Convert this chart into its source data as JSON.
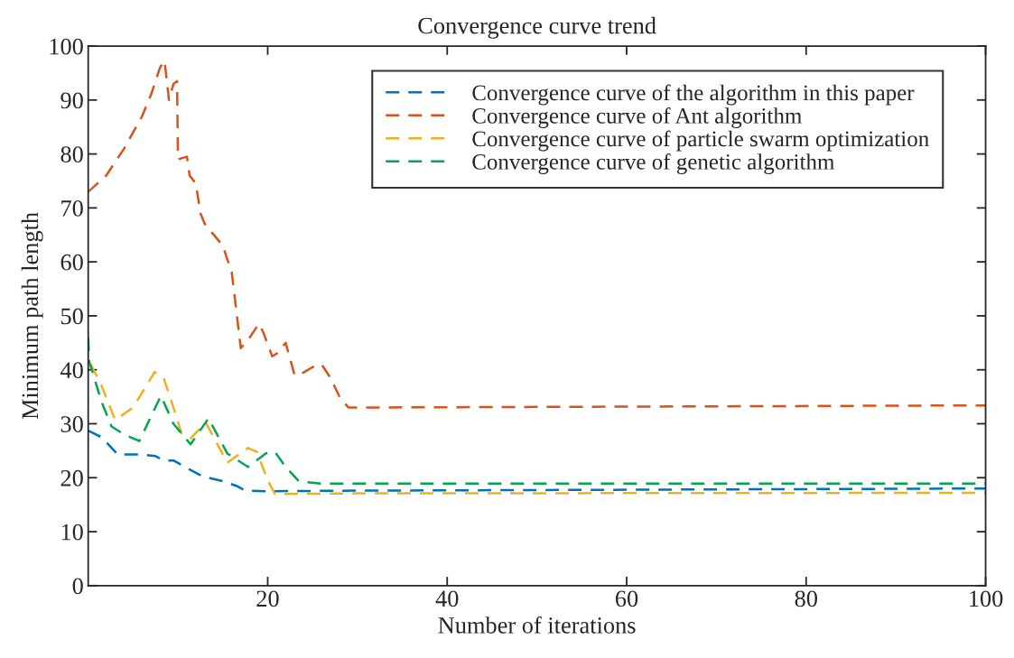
{
  "chart_data": {
    "type": "line",
    "title": "Convergence curve trend",
    "xlabel": "Number of iterations",
    "ylabel": "Minimum path length",
    "xlim": [
      0,
      100
    ],
    "ylim": [
      0,
      100
    ],
    "xticks": [
      20,
      40,
      60,
      80,
      100
    ],
    "yticks": [
      0,
      10,
      20,
      30,
      40,
      50,
      60,
      70,
      80,
      90,
      100
    ],
    "grid": false,
    "legend": "top right",
    "line_style": "dashed",
    "marker": "none",
    "series": [
      {
        "name": "Convergence curve of the algorithm in this paper",
        "color": "#0072bd",
        "x": [
          0,
          1.5,
          3.3,
          6,
          7.5,
          8.4,
          9.5,
          11,
          12.7,
          15.1,
          16.5,
          17.5,
          20,
          30,
          100
        ],
        "values": [
          28.7,
          27.5,
          24.3,
          24.3,
          24,
          23.2,
          23.2,
          21.8,
          20.3,
          19.3,
          18.5,
          17.6,
          17.5,
          17.6,
          18
        ]
      },
      {
        "name": "Convergence curve of Ant algorithm",
        "color": "#d95319",
        "x": [
          0,
          2,
          4,
          6,
          7,
          8,
          8.5,
          9,
          9.5,
          9.9,
          10,
          11,
          11.3,
          12,
          12.5,
          13,
          15,
          16,
          16.5,
          17,
          18,
          19,
          19.5,
          20.5,
          21,
          22,
          23,
          24,
          25,
          26,
          27,
          28,
          29,
          30,
          100
        ],
        "values": [
          73,
          76,
          81,
          87,
          91,
          96,
          97.3,
          90,
          93,
          93.5,
          79,
          79.5,
          76,
          74.5,
          69,
          67,
          63,
          58,
          51,
          44,
          46,
          48.5,
          47,
          42.5,
          43,
          45,
          39,
          39.5,
          40.5,
          41,
          38.5,
          35,
          33,
          33,
          33.4
        ]
      },
      {
        "name": "Convergence curve of particle swarm optimization",
        "color": "#edb120",
        "x": [
          0.3,
          1.5,
          3,
          5,
          7.4,
          8.4,
          9.5,
          10.4,
          11.4,
          13.1,
          15.5,
          17.8,
          18.8,
          20,
          20.8,
          22,
          30,
          100
        ],
        "values": [
          41,
          37,
          30.7,
          33,
          39.6,
          38.5,
          33,
          28.2,
          27.3,
          30.2,
          22.8,
          25.5,
          24.8,
          19.5,
          17,
          17,
          17.1,
          17.2
        ]
      },
      {
        "name": "Convergence curve of genetic algorithm",
        "color": "#00a651",
        "x": [
          0,
          0.1,
          1.5,
          2.6,
          4,
          5.7,
          8.1,
          9.5,
          11.4,
          13.4,
          15.5,
          17.8,
          19.8,
          20.8,
          22,
          23.5,
          25.9,
          30,
          100
        ],
        "values": [
          46,
          41.6,
          34,
          29.5,
          28,
          26.8,
          35.2,
          30,
          26.2,
          31,
          24.5,
          22,
          24.5,
          24.8,
          22,
          19.3,
          18.9,
          18.9,
          18.9
        ]
      }
    ]
  }
}
